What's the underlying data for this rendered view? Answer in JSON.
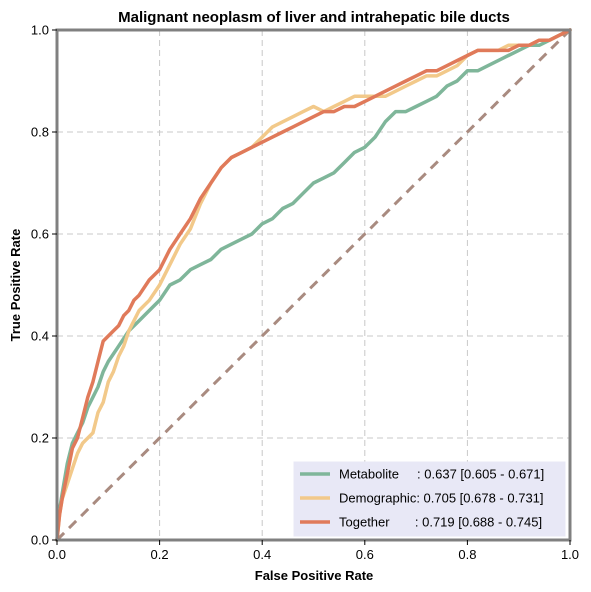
{
  "chart_data": {
    "type": "line",
    "title": "Malignant neoplasm of liver and intrahepatic bile ducts",
    "xlabel": "False Positive Rate",
    "ylabel": "True Positive Rate",
    "xlim": [
      0,
      1
    ],
    "ylim": [
      0,
      1
    ],
    "xticks": [
      "0.0",
      "0.2",
      "0.4",
      "0.6",
      "0.8",
      "1.0"
    ],
    "yticks": [
      "0.0",
      "0.2",
      "0.4",
      "0.6",
      "0.8",
      "1.0"
    ],
    "grid": true,
    "legend_position": "lower-right",
    "diagonal": {
      "x": [
        0,
        1
      ],
      "y": [
        0,
        1
      ],
      "color": "#a98b80"
    },
    "series": [
      {
        "name": "Metabolite",
        "legend_label": "Metabolite     : 0.637 [0.605 - 0.671]",
        "color": "#7fb69a",
        "x": [
          0,
          0.005,
          0.01,
          0.015,
          0.02,
          0.03,
          0.04,
          0.05,
          0.06,
          0.07,
          0.08,
          0.09,
          0.1,
          0.12,
          0.14,
          0.16,
          0.18,
          0.2,
          0.22,
          0.24,
          0.26,
          0.28,
          0.3,
          0.32,
          0.34,
          0.36,
          0.38,
          0.4,
          0.42,
          0.44,
          0.46,
          0.48,
          0.5,
          0.52,
          0.54,
          0.56,
          0.58,
          0.6,
          0.62,
          0.64,
          0.66,
          0.68,
          0.7,
          0.72,
          0.74,
          0.76,
          0.78,
          0.8,
          0.82,
          0.84,
          0.86,
          0.88,
          0.9,
          0.92,
          0.94,
          0.96,
          0.98,
          1.0
        ],
        "y": [
          0,
          0.06,
          0.09,
          0.12,
          0.15,
          0.19,
          0.21,
          0.23,
          0.26,
          0.28,
          0.3,
          0.33,
          0.35,
          0.38,
          0.41,
          0.43,
          0.45,
          0.47,
          0.5,
          0.51,
          0.53,
          0.54,
          0.55,
          0.57,
          0.58,
          0.59,
          0.6,
          0.62,
          0.63,
          0.65,
          0.66,
          0.68,
          0.7,
          0.71,
          0.72,
          0.74,
          0.76,
          0.77,
          0.79,
          0.82,
          0.84,
          0.84,
          0.85,
          0.86,
          0.87,
          0.89,
          0.9,
          0.92,
          0.92,
          0.93,
          0.94,
          0.95,
          0.96,
          0.97,
          0.97,
          0.98,
          0.99,
          1.0
        ]
      },
      {
        "name": "Demographic",
        "legend_label": "Demographic: 0.705 [0.678 - 0.731]",
        "color": "#f2c98a",
        "x": [
          0,
          0.005,
          0.01,
          0.02,
          0.03,
          0.04,
          0.05,
          0.06,
          0.07,
          0.08,
          0.09,
          0.1,
          0.11,
          0.12,
          0.13,
          0.14,
          0.16,
          0.18,
          0.2,
          0.22,
          0.24,
          0.26,
          0.28,
          0.3,
          0.32,
          0.34,
          0.36,
          0.38,
          0.4,
          0.42,
          0.44,
          0.46,
          0.48,
          0.5,
          0.52,
          0.54,
          0.56,
          0.58,
          0.6,
          0.62,
          0.64,
          0.66,
          0.68,
          0.7,
          0.72,
          0.74,
          0.76,
          0.78,
          0.8,
          0.82,
          0.84,
          0.86,
          0.88,
          0.9,
          0.92,
          0.94,
          0.96,
          0.98,
          1.0
        ],
        "y": [
          0,
          0.05,
          0.08,
          0.11,
          0.14,
          0.17,
          0.19,
          0.2,
          0.21,
          0.25,
          0.27,
          0.31,
          0.33,
          0.36,
          0.38,
          0.41,
          0.45,
          0.47,
          0.5,
          0.54,
          0.58,
          0.61,
          0.66,
          0.7,
          0.73,
          0.75,
          0.76,
          0.77,
          0.79,
          0.81,
          0.82,
          0.83,
          0.84,
          0.85,
          0.84,
          0.85,
          0.86,
          0.87,
          0.87,
          0.87,
          0.87,
          0.88,
          0.89,
          0.9,
          0.91,
          0.91,
          0.92,
          0.93,
          0.95,
          0.96,
          0.96,
          0.96,
          0.97,
          0.97,
          0.97,
          0.98,
          0.98,
          0.99,
          1.0
        ]
      },
      {
        "name": "Together",
        "legend_label": "Together       : 0.719 [0.688 - 0.745]",
        "color": "#e07a5a",
        "x": [
          0,
          0.005,
          0.01,
          0.02,
          0.03,
          0.04,
          0.05,
          0.06,
          0.07,
          0.08,
          0.09,
          0.1,
          0.11,
          0.12,
          0.13,
          0.14,
          0.15,
          0.16,
          0.18,
          0.2,
          0.22,
          0.24,
          0.26,
          0.28,
          0.3,
          0.32,
          0.34,
          0.36,
          0.38,
          0.4,
          0.42,
          0.44,
          0.46,
          0.48,
          0.5,
          0.52,
          0.54,
          0.56,
          0.58,
          0.6,
          0.62,
          0.64,
          0.66,
          0.68,
          0.7,
          0.72,
          0.74,
          0.76,
          0.78,
          0.8,
          0.82,
          0.84,
          0.86,
          0.88,
          0.9,
          0.92,
          0.94,
          0.96,
          0.98,
          1.0
        ],
        "y": [
          0,
          0.05,
          0.08,
          0.13,
          0.18,
          0.2,
          0.24,
          0.28,
          0.31,
          0.35,
          0.39,
          0.4,
          0.41,
          0.42,
          0.44,
          0.45,
          0.47,
          0.48,
          0.51,
          0.53,
          0.57,
          0.6,
          0.63,
          0.67,
          0.7,
          0.73,
          0.75,
          0.76,
          0.77,
          0.78,
          0.79,
          0.8,
          0.81,
          0.82,
          0.83,
          0.84,
          0.84,
          0.85,
          0.85,
          0.86,
          0.87,
          0.88,
          0.89,
          0.9,
          0.91,
          0.92,
          0.92,
          0.93,
          0.94,
          0.95,
          0.96,
          0.96,
          0.96,
          0.96,
          0.97,
          0.97,
          0.98,
          0.98,
          0.99,
          1.0
        ]
      }
    ]
  }
}
